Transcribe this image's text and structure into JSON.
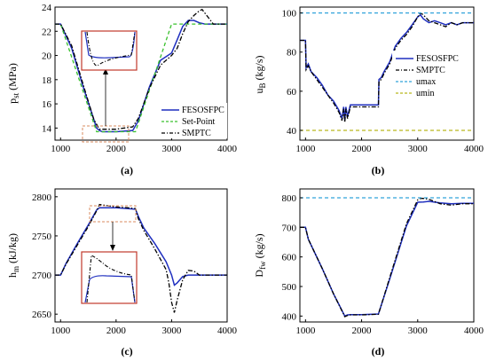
{
  "colors": {
    "fesosfpc": "#1f2fbf",
    "setpoint": "#39c12d",
    "smptc": "#000000",
    "umax": "#31a3db",
    "umin": "#b9b81f",
    "inset_frame": "#c0392b",
    "inset_box": "#d98b5f"
  },
  "chart_data": [
    {
      "type": "line",
      "panel_tag": "(a)",
      "xlabel": "",
      "ylabel_main": "p",
      "ylabel_sub": "st",
      "ylabel_unit": " (MPa)",
      "xlim": [
        900,
        4000
      ],
      "ylim": [
        13,
        24
      ],
      "xticks": [
        "1000",
        "2000",
        "3000",
        "4000"
      ],
      "xtick_values": [
        1000,
        2000,
        3000,
        4000
      ],
      "yticks": [
        "14",
        "16",
        "18",
        "20",
        "22",
        "24"
      ],
      "ytick_values": [
        14,
        16,
        18,
        20,
        22,
        24
      ],
      "legend": [
        "FESOSFPC",
        "Set-Point",
        "SMPTC"
      ],
      "legend_position": "bottom-right",
      "series": [
        {
          "name": "FESOSFPC",
          "style": "solid",
          "x": [
            900,
            1000,
            1200,
            1400,
            1650,
            1700,
            1750,
            1800,
            2000,
            2300,
            2400,
            2600,
            2800,
            3000,
            3100,
            3200,
            3300,
            3400,
            3500,
            3600,
            3700,
            4000
          ],
          "y": [
            22.6,
            22.6,
            20.6,
            17.5,
            14.0,
            13.8,
            13.7,
            13.7,
            13.7,
            13.8,
            14.6,
            17.4,
            19.6,
            20.2,
            21.3,
            22.4,
            22.9,
            22.9,
            22.7,
            22.6,
            22.6,
            22.6
          ]
        },
        {
          "name": "Set-Point",
          "style": "dashed",
          "x": [
            900,
            1000,
            1650,
            2350,
            3000,
            3050,
            4000
          ],
          "y": [
            22.6,
            22.6,
            13.7,
            13.7,
            22.6,
            22.6,
            22.6
          ]
        },
        {
          "name": "SMPTC",
          "style": "dashdot",
          "x": [
            900,
            1000,
            1200,
            1400,
            1600,
            1700,
            1800,
            2000,
            2300,
            2400,
            2600,
            2800,
            3000,
            3100,
            3200,
            3300,
            3400,
            3500,
            3550,
            3650,
            3750,
            4000
          ],
          "y": [
            22.6,
            22.6,
            20.8,
            17.7,
            14.7,
            13.9,
            13.9,
            13.9,
            14.1,
            14.8,
            17.3,
            19.2,
            20.0,
            20.6,
            21.8,
            22.8,
            23.3,
            23.7,
            23.8,
            23.2,
            22.6,
            22.6
          ]
        }
      ]
    },
    {
      "type": "line",
      "panel_tag": "(b)",
      "ylabel_main": "u",
      "ylabel_sub": "B",
      "ylabel_unit": " (kg/s)",
      "xlim": [
        900,
        4000
      ],
      "ylim": [
        35,
        103
      ],
      "xticks": [
        "1000",
        "2000",
        "3000",
        "4000"
      ],
      "xtick_values": [
        1000,
        2000,
        3000,
        4000
      ],
      "yticks": [
        "40",
        "60",
        "80",
        "100"
      ],
      "ytick_values": [
        40,
        60,
        80,
        100
      ],
      "legend": [
        "FESOSFPC",
        "SMPTC",
        "umax",
        "umin"
      ],
      "legend_position": "center-right",
      "series": [
        {
          "name": "FESOSFPC",
          "style": "solid",
          "x": [
            900,
            1000,
            1010,
            1050,
            1100,
            1200,
            1300,
            1400,
            1500,
            1600,
            1650,
            1680,
            1700,
            1720,
            1750,
            1800,
            1900,
            2000,
            2300,
            2310,
            2350,
            2400,
            2500,
            2600,
            2700,
            2800,
            2900,
            3000,
            3050,
            3100,
            3200,
            3300,
            3400,
            3500,
            3600,
            3700,
            3800,
            4000
          ],
          "y": [
            86,
            86,
            72,
            74,
            70,
            67,
            63,
            58,
            55,
            50,
            46,
            52,
            45,
            52,
            47,
            53,
            53,
            53,
            53,
            66,
            67,
            70,
            75,
            83,
            87,
            90,
            94,
            98,
            99,
            97,
            95,
            96,
            95,
            94,
            95,
            94,
            95,
            95
          ]
        },
        {
          "name": "SMPTC",
          "style": "dashdot",
          "x": [
            900,
            1000,
            1010,
            1050,
            1100,
            1200,
            1300,
            1400,
            1500,
            1600,
            1650,
            1680,
            1700,
            1720,
            1750,
            1800,
            1900,
            2000,
            2300,
            2310,
            2350,
            2400,
            2500,
            2600,
            2700,
            2800,
            2900,
            3000,
            3050,
            3100,
            3200,
            3300,
            3400,
            3500,
            3600,
            3700,
            3800,
            4000
          ],
          "y": [
            86,
            86,
            71,
            73,
            70,
            66,
            62,
            58,
            54,
            49,
            45,
            51,
            44,
            51,
            46,
            52,
            52,
            52,
            52,
            65,
            66,
            69,
            74,
            82,
            86,
            89,
            93,
            98,
            100,
            99,
            96,
            95,
            94,
            93,
            95,
            94,
            95,
            95
          ]
        },
        {
          "name": "umax",
          "style": "dashed",
          "x": [
            900,
            4000
          ],
          "y": [
            100,
            100
          ]
        },
        {
          "name": "umin",
          "style": "dashed",
          "x": [
            900,
            4000
          ],
          "y": [
            40,
            40
          ]
        }
      ]
    },
    {
      "type": "line",
      "panel_tag": "(c)",
      "ylabel_main": "h",
      "ylabel_sub": "m",
      "ylabel_unit": " (kJ/kg)",
      "xlim": [
        900,
        4000
      ],
      "ylim": [
        2640,
        2810
      ],
      "xticks": [
        "1000",
        "2000",
        "3000",
        "4000"
      ],
      "xtick_values": [
        1000,
        2000,
        3000,
        4000
      ],
      "yticks": [
        "2650",
        "2700",
        "2750",
        "2800"
      ],
      "ytick_values": [
        2650,
        2700,
        2750,
        2800
      ],
      "series": [
        {
          "name": "FESOSFPC",
          "style": "solid",
          "x": [
            900,
            1000,
            1100,
            1300,
            1500,
            1650,
            1700,
            1800,
            2000,
            2200,
            2350,
            2400,
            2500,
            2700,
            2900,
            3000,
            3050,
            3100,
            3200,
            3300,
            3500,
            4000
          ],
          "y": [
            2700,
            2700,
            2715,
            2740,
            2764,
            2783,
            2786,
            2786,
            2786,
            2785,
            2784,
            2775,
            2760,
            2740,
            2717,
            2700,
            2687,
            2690,
            2698,
            2700,
            2700,
            2700
          ]
        },
        {
          "name": "SMPTC",
          "style": "dashdot",
          "x": [
            900,
            1000,
            1100,
            1300,
            1500,
            1650,
            1700,
            1800,
            2000,
            2200,
            2350,
            2400,
            2500,
            2700,
            2900,
            2950,
            3000,
            3050,
            3100,
            3200,
            3300,
            3400,
            3500,
            4000
          ],
          "y": [
            2700,
            2700,
            2714,
            2738,
            2762,
            2782,
            2790,
            2789,
            2787,
            2786,
            2785,
            2772,
            2757,
            2733,
            2707,
            2690,
            2665,
            2652,
            2668,
            2694,
            2706,
            2705,
            2700,
            2700
          ]
        }
      ]
    },
    {
      "type": "line",
      "panel_tag": "(d)",
      "ylabel_main": "D",
      "ylabel_sub": "fw",
      "ylabel_unit": " (kg/s)",
      "xlim": [
        900,
        4000
      ],
      "ylim": [
        380,
        830
      ],
      "xticks": [
        "1000",
        "2000",
        "3000",
        "4000"
      ],
      "xtick_values": [
        1000,
        2000,
        3000,
        4000
      ],
      "yticks": [
        "400",
        "500",
        "600",
        "700",
        "800"
      ],
      "ytick_values": [
        400,
        500,
        600,
        700,
        800
      ],
      "series": [
        {
          "name": "FESOSFPC",
          "style": "solid",
          "x": [
            900,
            1000,
            1050,
            1300,
            1500,
            1700,
            1750,
            1800,
            2000,
            2300,
            2500,
            2800,
            3000,
            3100,
            3200,
            3400,
            3600,
            3800,
            4000
          ],
          "y": [
            700,
            700,
            660,
            560,
            475,
            400,
            404,
            405,
            405,
            407,
            525,
            705,
            785,
            786,
            788,
            783,
            780,
            781,
            781
          ]
        },
        {
          "name": "SMPTC",
          "style": "dashdot",
          "x": [
            900,
            1000,
            1050,
            1300,
            1500,
            1700,
            1750,
            1800,
            2000,
            2300,
            2500,
            2800,
            3000,
            3050,
            3100,
            3200,
            3400,
            3600,
            3800,
            4000
          ],
          "y": [
            700,
            700,
            660,
            560,
            475,
            398,
            402,
            404,
            404,
            406,
            530,
            712,
            793,
            798,
            798,
            795,
            780,
            775,
            780,
            780
          ]
        },
        {
          "name": "umax",
          "style": "dashed",
          "x": [
            900,
            4000
          ],
          "y": [
            800,
            800
          ]
        }
      ]
    }
  ]
}
